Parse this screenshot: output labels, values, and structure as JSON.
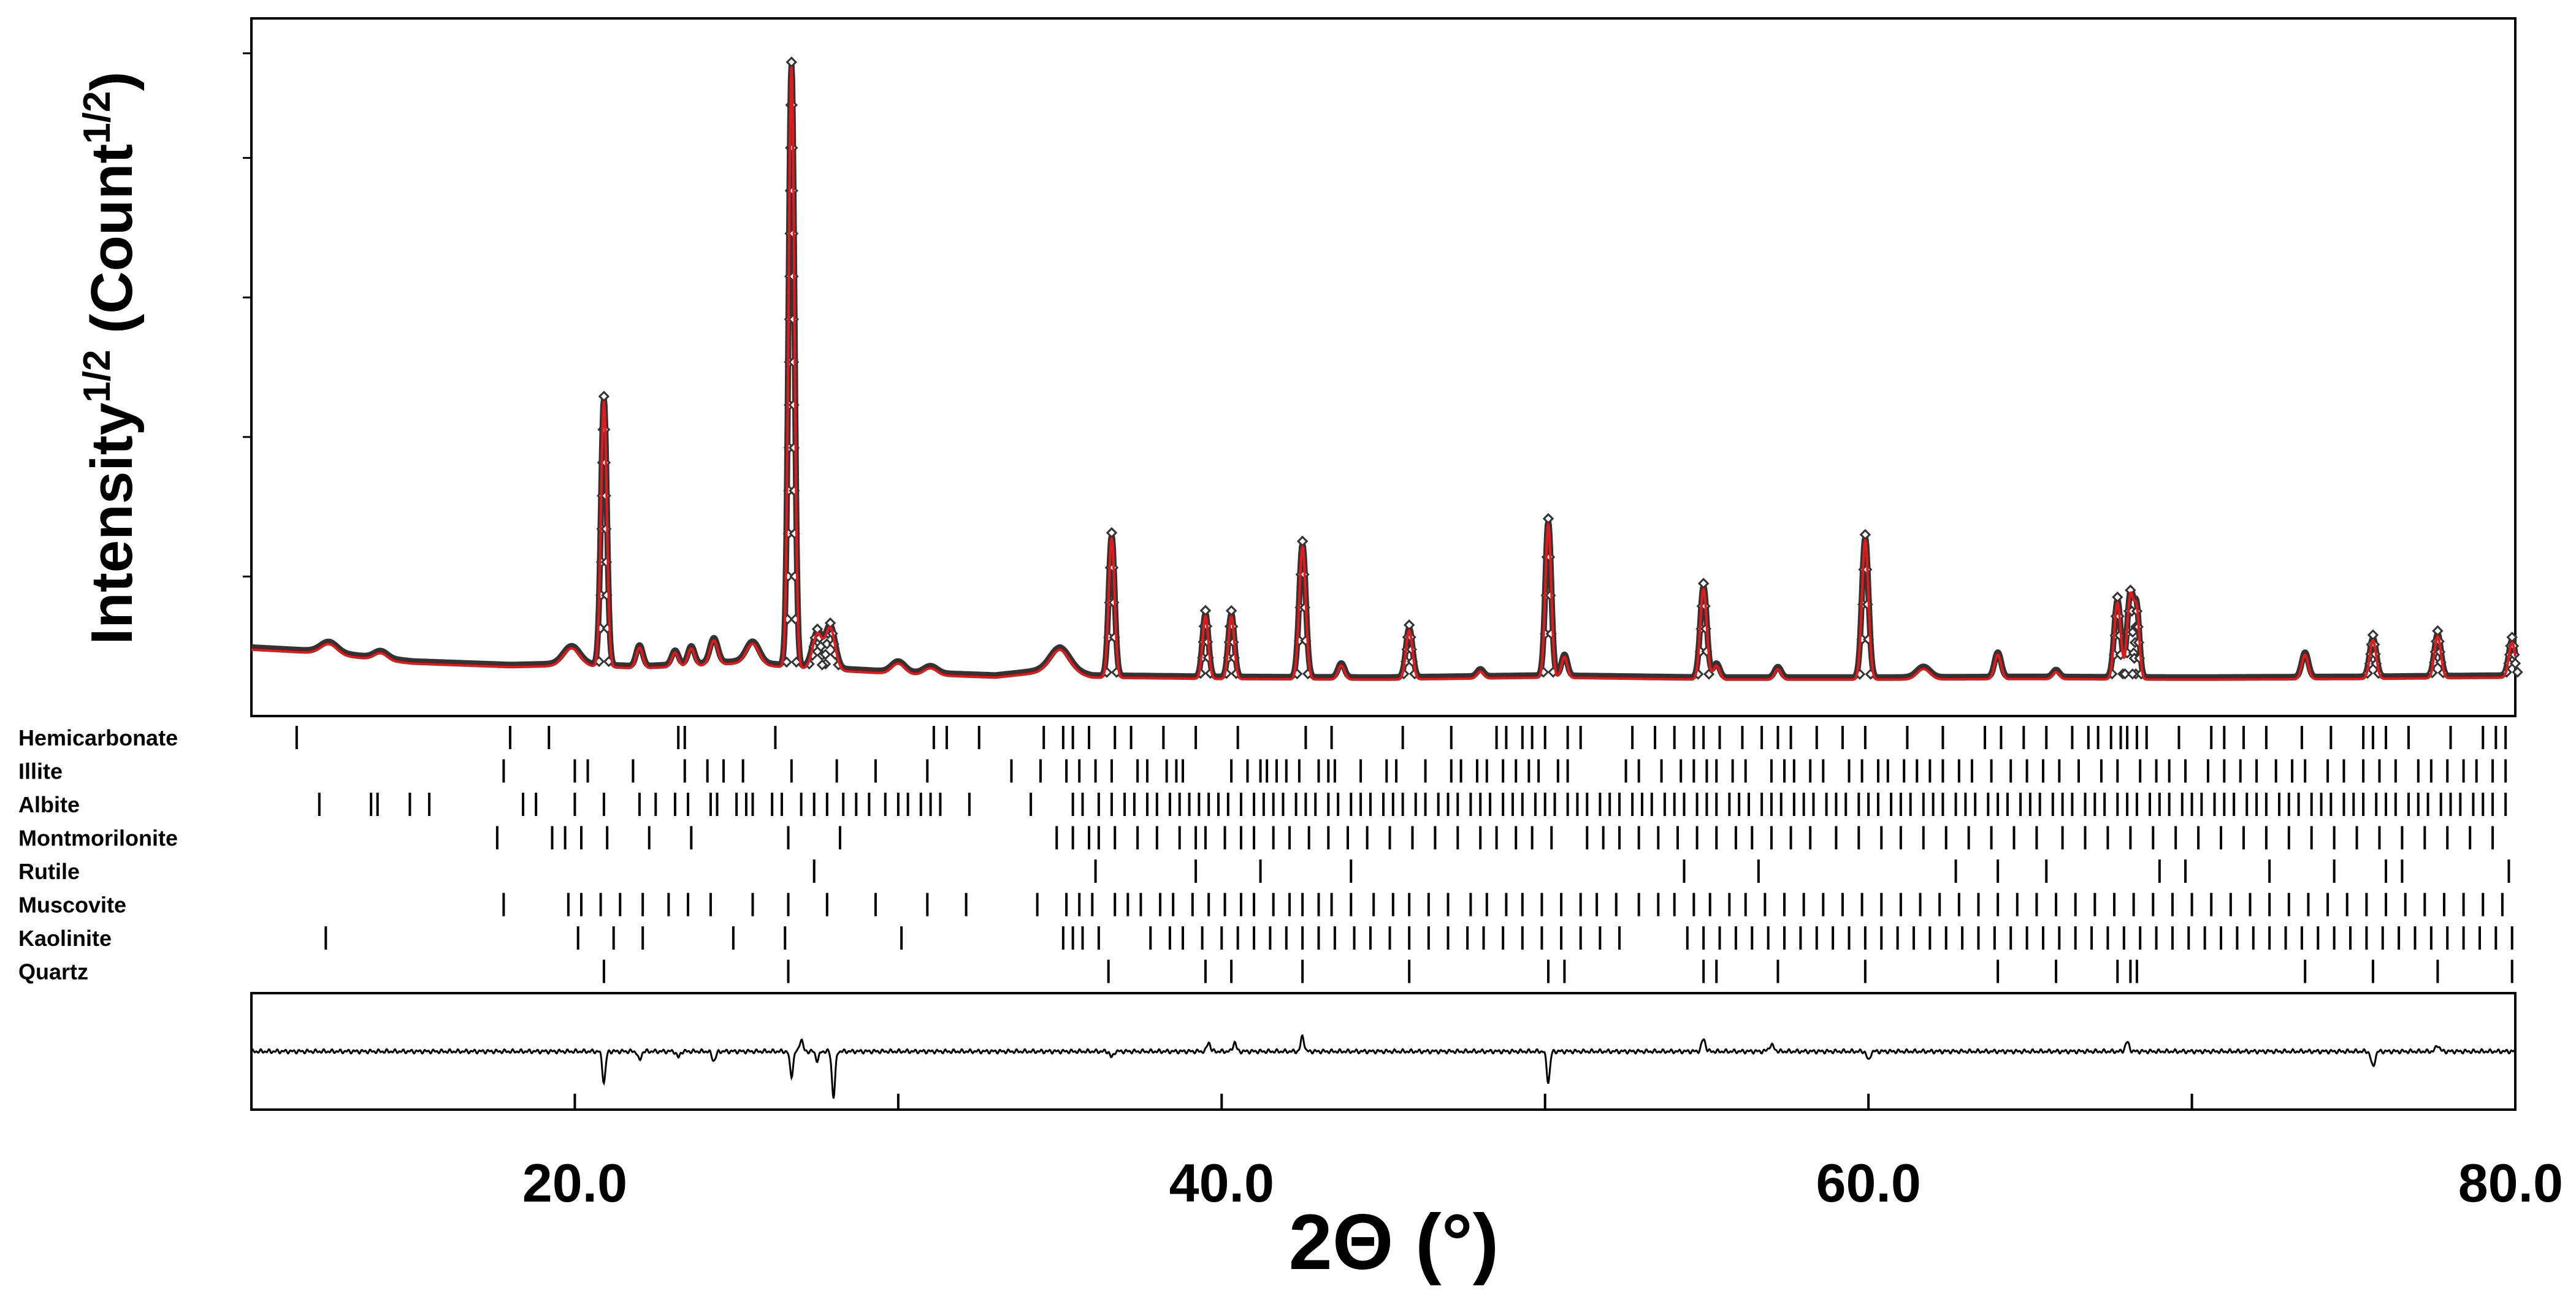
{
  "chart_data": {
    "type": "line",
    "title": "",
    "xlabel": "2Θ (°)",
    "ylabel": {
      "base": "Intensity",
      "base_sup": "1/2",
      "unit": " (Count",
      "unit_sup": "1/2",
      "close": ")"
    },
    "xlim": [
      10.0,
      80.0
    ],
    "ylim": [
      0,
      100
    ],
    "x_tick_labels": [
      "20.0",
      "40.0",
      "60.0",
      "80.0"
    ],
    "x_ticks": [
      20,
      30,
      40,
      50,
      60,
      70,
      80
    ],
    "y_ticks": [
      20,
      40,
      60,
      80,
      95
    ],
    "grid": false,
    "legend": "none",
    "colors": {
      "observed": "#555555",
      "calculated": "#e31a1c",
      "difference": "#000000",
      "ticks": "#000000"
    },
    "background": [
      [
        10,
        9.5
      ],
      [
        12,
        9.0
      ],
      [
        15,
        7.5
      ],
      [
        18,
        7.0
      ],
      [
        20,
        7.2
      ],
      [
        22,
        6.8
      ],
      [
        25,
        7.5
      ],
      [
        28,
        6.5
      ],
      [
        30,
        6.0
      ],
      [
        33,
        5.5
      ],
      [
        35,
        6.5
      ],
      [
        36,
        5.5
      ],
      [
        40,
        5.3
      ],
      [
        45,
        5.2
      ],
      [
        50,
        5.5
      ],
      [
        55,
        5.2
      ],
      [
        60,
        5.2
      ],
      [
        65,
        5.3
      ],
      [
        70,
        5.2
      ],
      [
        75,
        5.3
      ],
      [
        80,
        5.5
      ]
    ],
    "peaks": [
      {
        "x": 12.4,
        "h": 1.5,
        "w": 0.25
      },
      {
        "x": 14.0,
        "h": 1.0,
        "w": 0.2
      },
      {
        "x": 19.9,
        "h": 2.5,
        "w": 0.25
      },
      {
        "x": 20.9,
        "h": 38.0,
        "w": 0.09
      },
      {
        "x": 22.0,
        "h": 3.0,
        "w": 0.1
      },
      {
        "x": 23.1,
        "h": 2.0,
        "w": 0.1
      },
      {
        "x": 23.6,
        "h": 2.5,
        "w": 0.1
      },
      {
        "x": 24.3,
        "h": 3.5,
        "w": 0.12
      },
      {
        "x": 25.5,
        "h": 3.0,
        "w": 0.2
      },
      {
        "x": 26.7,
        "h": 86.0,
        "w": 0.09
      },
      {
        "x": 27.5,
        "h": 5.0,
        "w": 0.15
      },
      {
        "x": 27.9,
        "h": 6.0,
        "w": 0.15
      },
      {
        "x": 30.0,
        "h": 1.5,
        "w": 0.2
      },
      {
        "x": 31.0,
        "h": 1.0,
        "w": 0.2
      },
      {
        "x": 35.0,
        "h": 3.0,
        "w": 0.3
      },
      {
        "x": 36.6,
        "h": 20.0,
        "w": 0.09
      },
      {
        "x": 39.5,
        "h": 9.0,
        "w": 0.09
      },
      {
        "x": 40.3,
        "h": 9.0,
        "w": 0.09
      },
      {
        "x": 42.5,
        "h": 19.0,
        "w": 0.1
      },
      {
        "x": 43.7,
        "h": 2.0,
        "w": 0.1
      },
      {
        "x": 45.8,
        "h": 7.0,
        "w": 0.1
      },
      {
        "x": 48.0,
        "h": 1.0,
        "w": 0.1
      },
      {
        "x": 50.1,
        "h": 22.0,
        "w": 0.09
      },
      {
        "x": 50.6,
        "h": 3.0,
        "w": 0.09
      },
      {
        "x": 54.9,
        "h": 13.0,
        "w": 0.1
      },
      {
        "x": 55.3,
        "h": 2.0,
        "w": 0.1
      },
      {
        "x": 57.2,
        "h": 1.5,
        "w": 0.1
      },
      {
        "x": 59.9,
        "h": 20.0,
        "w": 0.1
      },
      {
        "x": 61.7,
        "h": 1.5,
        "w": 0.2
      },
      {
        "x": 64.0,
        "h": 3.5,
        "w": 0.1
      },
      {
        "x": 65.8,
        "h": 1.0,
        "w": 0.1
      },
      {
        "x": 67.7,
        "h": 11.0,
        "w": 0.1
      },
      {
        "x": 68.1,
        "h": 12.0,
        "w": 0.1
      },
      {
        "x": 68.3,
        "h": 9.0,
        "w": 0.08
      },
      {
        "x": 73.5,
        "h": 3.5,
        "w": 0.1
      },
      {
        "x": 75.6,
        "h": 5.5,
        "w": 0.1
      },
      {
        "x": 77.6,
        "h": 6.0,
        "w": 0.1
      },
      {
        "x": 79.9,
        "h": 5.0,
        "w": 0.1
      }
    ],
    "difference_features": [
      {
        "x": 20.9,
        "d": -5.0,
        "w": 0.05
      },
      {
        "x": 22.0,
        "d": -1.5,
        "w": 0.05
      },
      {
        "x": 23.2,
        "d": -1.0,
        "w": 0.05
      },
      {
        "x": 24.3,
        "d": -1.5,
        "w": 0.06
      },
      {
        "x": 26.7,
        "d": -4.0,
        "w": 0.05
      },
      {
        "x": 27.0,
        "d": 2.0,
        "w": 0.05
      },
      {
        "x": 27.5,
        "d": -1.5,
        "w": 0.05
      },
      {
        "x": 28.0,
        "d": -7.5,
        "w": 0.05
      },
      {
        "x": 36.6,
        "d": -1.0,
        "w": 0.05
      },
      {
        "x": 39.6,
        "d": 1.5,
        "w": 0.05
      },
      {
        "x": 40.4,
        "d": 1.5,
        "w": 0.05
      },
      {
        "x": 42.5,
        "d": 2.5,
        "w": 0.05
      },
      {
        "x": 50.1,
        "d": -5.0,
        "w": 0.05
      },
      {
        "x": 54.9,
        "d": 2.0,
        "w": 0.06
      },
      {
        "x": 57.0,
        "d": 1.0,
        "w": 0.08
      },
      {
        "x": 60.0,
        "d": -1.5,
        "w": 0.05
      },
      {
        "x": 68.0,
        "d": 1.5,
        "w": 0.06
      },
      {
        "x": 75.6,
        "d": -2.5,
        "w": 0.06
      },
      {
        "x": 77.6,
        "d": 1.0,
        "w": 0.06
      }
    ],
    "phases": [
      {
        "name": "Hemicarbonate",
        "positions": [
          11.4,
          18.0,
          19.2,
          23.2,
          23.4,
          26.2,
          31.1,
          31.5,
          32.5,
          34.5,
          35.1,
          35.4,
          35.9,
          36.7,
          37.2,
          38.2,
          39.2,
          40.5,
          42.6,
          43.4,
          45.6,
          47.1,
          48.5,
          48.8,
          49.3,
          49.6,
          50.0,
          50.7,
          51.1,
          52.7,
          53.4,
          54.0,
          54.6,
          54.9,
          55.4,
          56.1,
          56.7,
          57.2,
          57.6,
          58.4,
          59.2,
          59.9,
          61.2,
          62.3,
          63.6,
          64.1,
          64.8,
          65.5,
          66.3,
          66.8,
          67.1,
          67.5,
          67.8,
          68.0,
          68.3,
          68.6,
          69.6,
          70.6,
          71.0,
          71.6,
          72.3,
          73.4,
          74.3,
          75.3,
          75.6,
          76.0,
          76.7,
          78.0,
          79.0,
          79.4,
          79.7
        ]
      },
      {
        "name": "Illite",
        "positions": [
          17.8,
          20.0,
          20.4,
          21.8,
          23.4,
          24.1,
          24.6,
          25.2,
          26.7,
          28.1,
          29.3,
          30.9,
          33.5,
          34.4,
          35.2,
          35.6,
          36.1,
          36.6,
          37.4,
          37.7,
          38.3,
          38.6,
          38.8,
          40.3,
          40.8,
          41.2,
          41.4,
          41.7,
          42.0,
          42.4,
          43.0,
          43.3,
          43.5,
          44.3,
          45.1,
          45.4,
          46.3,
          47.1,
          47.4,
          47.9,
          48.2,
          48.7,
          49.1,
          49.5,
          49.8,
          50.4,
          50.7,
          52.5,
          52.9,
          53.6,
          54.2,
          54.6,
          55.0,
          55.3,
          55.8,
          56.2,
          57.0,
          57.4,
          57.7,
          58.2,
          58.6,
          59.4,
          59.8,
          60.3,
          60.6,
          61.1,
          61.5,
          61.9,
          62.3,
          62.8,
          63.2,
          63.8,
          64.4,
          64.9,
          65.4,
          65.9,
          66.5,
          67.2,
          67.7,
          68.4,
          68.9,
          69.3,
          69.8,
          70.5,
          71.0,
          71.5,
          72.0,
          72.6,
          73.1,
          73.5,
          74.2,
          74.7,
          75.3,
          75.8,
          76.3,
          77.0,
          77.4,
          77.9,
          78.4,
          78.8,
          79.3,
          79.7
        ]
      },
      {
        "name": "Albite",
        "positions": [
          12.1,
          13.7,
          13.9,
          14.9,
          15.5,
          18.4,
          18.8,
          20.0,
          20.9,
          22.0,
          22.5,
          23.1,
          23.5,
          24.2,
          24.4,
          25.0,
          25.3,
          25.5,
          26.1,
          26.4,
          27.0,
          27.4,
          27.8,
          28.3,
          28.7,
          29.1,
          29.6,
          30.0,
          30.3,
          30.7,
          31.0,
          31.3,
          32.2,
          34.1,
          35.4,
          35.7,
          36.2,
          36.6,
          37.0,
          37.3,
          37.7,
          38.0,
          38.4,
          38.7,
          39.0,
          39.3,
          39.6,
          39.9,
          40.2,
          40.6,
          41.0,
          41.3,
          41.6,
          41.9,
          42.3,
          42.6,
          42.9,
          43.3,
          43.6,
          44.0,
          44.3,
          44.6,
          45.0,
          45.3,
          45.6,
          46.0,
          46.3,
          46.7,
          47.0,
          47.3,
          47.7,
          48.0,
          48.3,
          48.7,
          49.0,
          49.3,
          49.7,
          50.0,
          50.3,
          50.7,
          51.0,
          51.3,
          51.7,
          52.0,
          52.3,
          52.7,
          53.0,
          53.3,
          53.7,
          54.0,
          54.3,
          54.7,
          55.0,
          55.3,
          55.7,
          56.0,
          56.3,
          56.7,
          57.0,
          57.3,
          57.7,
          58.0,
          58.3,
          58.7,
          59.0,
          59.3,
          59.7,
          60.0,
          60.3,
          60.7,
          61.0,
          61.3,
          61.7,
          62.0,
          62.3,
          62.7,
          63.0,
          63.3,
          63.7,
          64.0,
          64.3,
          64.7,
          65.0,
          65.3,
          65.7,
          66.0,
          66.3,
          66.7,
          67.0,
          67.3,
          67.7,
          68.0,
          68.3,
          68.7,
          69.0,
          69.3,
          69.7,
          70.0,
          70.3,
          70.7,
          71.0,
          71.3,
          71.7,
          72.0,
          72.3,
          72.7,
          73.0,
          73.3,
          73.7,
          74.0,
          74.3,
          74.7,
          75.0,
          75.3,
          75.7,
          76.0,
          76.3,
          76.7,
          77.0,
          77.3,
          77.7,
          78.0,
          78.3,
          78.7,
          79.0,
          79.3,
          79.7
        ]
      },
      {
        "name": "Montmorilonite",
        "positions": [
          17.6,
          19.3,
          19.7,
          20.2,
          21.0,
          22.3,
          23.6,
          26.6,
          28.2,
          34.9,
          35.4,
          35.9,
          36.2,
          36.7,
          37.4,
          38.0,
          38.7,
          39.2,
          39.5,
          40.1,
          40.6,
          41.0,
          41.6,
          42.1,
          42.7,
          43.3,
          43.9,
          44.5,
          45.2,
          45.9,
          46.6,
          47.3,
          48.0,
          48.5,
          49.1,
          49.6,
          50.2,
          51.3,
          51.8,
          52.3,
          52.9,
          53.5,
          54.1,
          54.7,
          55.3,
          55.9,
          56.4,
          57.0,
          57.6,
          58.2,
          59.0,
          59.7,
          60.4,
          61.0,
          61.7,
          62.4,
          63.1,
          63.8,
          64.5,
          65.2,
          66.0,
          66.7,
          67.4,
          68.1,
          68.8,
          69.5,
          70.2,
          70.9,
          71.6,
          72.3,
          73.0,
          73.7,
          74.4,
          75.1,
          75.8,
          76.5,
          77.2,
          77.9,
          78.6,
          79.3
        ]
      },
      {
        "name": "Rutile",
        "positions": [
          27.4,
          36.1,
          39.2,
          41.2,
          44.0,
          54.3,
          56.6,
          62.7,
          64.0,
          65.5,
          69.0,
          69.8,
          72.4,
          74.4,
          76.0,
          76.5,
          79.8
        ]
      },
      {
        "name": "Muscovite",
        "positions": [
          17.8,
          19.8,
          20.2,
          20.8,
          21.4,
          22.1,
          22.9,
          23.5,
          24.2,
          25.5,
          26.6,
          27.8,
          29.3,
          30.9,
          32.1,
          34.3,
          35.2,
          35.6,
          36.0,
          36.7,
          37.1,
          37.5,
          38.1,
          38.5,
          39.1,
          39.6,
          40.1,
          40.6,
          41.0,
          41.6,
          42.1,
          42.5,
          43.0,
          43.4,
          44.0,
          44.7,
          45.3,
          45.8,
          46.4,
          47.0,
          47.7,
          48.2,
          48.8,
          49.3,
          49.9,
          50.5,
          51.1,
          51.6,
          52.2,
          52.9,
          53.5,
          54.0,
          54.6,
          55.1,
          55.7,
          56.2,
          56.8,
          57.4,
          58.0,
          58.6,
          59.2,
          59.8,
          60.4,
          61.0,
          61.6,
          62.2,
          62.8,
          63.4,
          64.0,
          64.6,
          65.2,
          65.8,
          66.4,
          67.0,
          67.6,
          68.2,
          68.8,
          69.4,
          70.0,
          70.6,
          71.2,
          71.8,
          72.4,
          73.0,
          73.6,
          74.2,
          74.8,
          75.4,
          76.0,
          76.6,
          77.2,
          77.8,
          78.4,
          79.0,
          79.6
        ]
      },
      {
        "name": "Kaolinite",
        "positions": [
          12.3,
          20.1,
          21.2,
          22.1,
          24.9,
          26.5,
          30.1,
          35.1,
          35.4,
          35.7,
          36.2,
          37.8,
          38.4,
          38.8,
          39.4,
          40.0,
          40.5,
          41.0,
          41.5,
          42.0,
          42.5,
          43.0,
          43.5,
          44.1,
          44.6,
          45.2,
          45.8,
          46.4,
          47.0,
          47.6,
          48.1,
          48.7,
          49.3,
          49.9,
          50.5,
          51.1,
          51.7,
          52.3,
          54.4,
          54.9,
          55.4,
          55.9,
          56.4,
          56.9,
          57.4,
          57.9,
          58.4,
          58.9,
          59.4,
          59.9,
          60.4,
          60.9,
          61.4,
          61.9,
          62.4,
          62.9,
          63.4,
          63.9,
          64.4,
          64.9,
          65.4,
          65.9,
          66.4,
          66.9,
          67.4,
          67.9,
          68.4,
          68.9,
          69.4,
          69.9,
          70.4,
          70.9,
          71.4,
          71.9,
          72.4,
          72.9,
          73.4,
          73.9,
          74.4,
          74.9,
          75.4,
          75.9,
          76.4,
          76.9,
          77.4,
          77.9,
          78.4,
          78.9,
          79.4,
          79.9
        ]
      },
      {
        "name": "Quartz",
        "positions": [
          20.9,
          26.6,
          36.5,
          39.5,
          40.3,
          42.5,
          45.8,
          50.1,
          50.6,
          54.9,
          55.3,
          57.2,
          59.9,
          64.0,
          65.8,
          67.7,
          68.1,
          68.3,
          73.5,
          75.6,
          77.6,
          79.9
        ]
      }
    ]
  }
}
